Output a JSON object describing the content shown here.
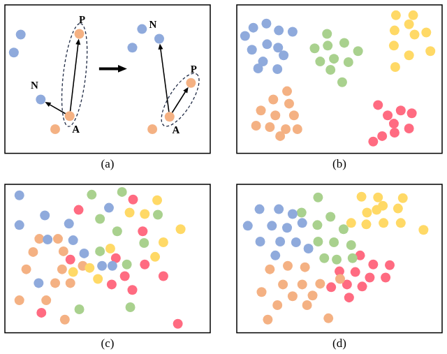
{
  "chart_data": [
    {
      "type": "scatter",
      "title": "(a)",
      "xlim": [
        0,
        298
      ],
      "ylim": [
        0,
        215
      ],
      "tick_labels": false,
      "grid": false,
      "series": [
        {
          "color": "#8faadc",
          "values": [
            [
              23,
              172
            ],
            [
              13,
              146
            ],
            [
              52,
              78
            ],
            [
              224,
              166
            ],
            [
              199,
              180
            ],
            [
              185,
              153
            ]
          ]
        },
        {
          "color": "#f4b183",
          "values": [
            [
              108,
              173
            ],
            [
              94,
              54
            ],
            [
              73,
              35
            ],
            [
              270,
              102
            ],
            [
              239,
              53
            ],
            [
              214,
              35
            ]
          ]
        }
      ],
      "triplets": [
        {
          "anchor": {
            "text": "A",
            "x": 94,
            "y": 54
          },
          "positive": {
            "text": "P",
            "x": 108,
            "y": 173
          },
          "negative": {
            "text": "N",
            "x": 52,
            "y": 78
          }
        },
        {
          "anchor": {
            "text": "A",
            "x": 239,
            "y": 53
          },
          "positive": {
            "text": "P",
            "x": 270,
            "y": 102
          },
          "negative": {
            "text": "N",
            "x": 224,
            "y": 166
          }
        }
      ]
    },
    {
      "type": "scatter",
      "title": "(b)",
      "xlim": [
        0,
        298
      ],
      "ylim": [
        0,
        215
      ],
      "tick_labels": false,
      "grid": false,
      "series": [
        {
          "color": "#8faadc",
          "values": [
            [
              12,
              170
            ],
            [
              24,
              182
            ],
            [
              43,
              188
            ],
            [
              61,
              178
            ],
            [
              81,
              176
            ],
            [
              22,
              150
            ],
            [
              44,
              158
            ],
            [
              60,
              153
            ],
            [
              38,
              133
            ],
            [
              68,
              142
            ],
            [
              31,
              123
            ],
            [
              59,
              122
            ]
          ]
        },
        {
          "color": "#a9d18e",
          "values": [
            [
              131,
              173
            ],
            [
              113,
              152
            ],
            [
              132,
              156
            ],
            [
              156,
              160
            ],
            [
              176,
              148
            ],
            [
              121,
              133
            ],
            [
              141,
              137
            ],
            [
              162,
              132
            ],
            [
              136,
              121
            ],
            [
              153,
              103
            ]
          ]
        },
        {
          "color": "#ffd966",
          "values": [
            [
              231,
              200
            ],
            [
              256,
              200
            ],
            [
              250,
              187
            ],
            [
              229,
              178
            ],
            [
              258,
              172
            ],
            [
              275,
              175
            ],
            [
              228,
              156
            ],
            [
              250,
              142
            ],
            [
              281,
              148
            ],
            [
              230,
              125
            ]
          ]
        },
        {
          "color": "#f4b183",
          "values": [
            [
              73,
              90
            ],
            [
              53,
              78
            ],
            [
              76,
              72
            ],
            [
              35,
              62
            ],
            [
              56,
              55
            ],
            [
              83,
              55
            ],
            [
              28,
              40
            ],
            [
              48,
              38
            ],
            [
              71,
              35
            ],
            [
              88,
              35
            ],
            [
              63,
              25
            ]
          ]
        },
        {
          "color": "#ff6b81",
          "values": [
            [
              205,
              70
            ],
            [
              219,
              55
            ],
            [
              238,
              62
            ],
            [
              254,
              58
            ],
            [
              228,
              43
            ],
            [
              250,
              36
            ],
            [
              211,
              25
            ],
            [
              229,
              30
            ],
            [
              198,
              17
            ]
          ]
        }
      ]
    },
    {
      "type": "scatter",
      "title": "(c)",
      "xlim": [
        0,
        298
      ],
      "ylim": [
        0,
        215
      ],
      "tick_labels": false,
      "grid": false,
      "series": [
        {
          "color": "#8faadc",
          "values": [
            [
              21,
              199
            ],
            [
              58,
              170
            ],
            [
              21,
              156
            ],
            [
              151,
              181
            ],
            [
              93,
              158
            ],
            [
              62,
              135
            ],
            [
              99,
              134
            ],
            [
              115,
              115
            ],
            [
              141,
              97
            ],
            [
              49,
              72
            ],
            [
              156,
              97
            ]
          ]
        },
        {
          "color": "#a9d18e",
          "values": [
            [
              126,
              200
            ],
            [
              170,
              204
            ],
            [
              138,
              165
            ],
            [
              222,
              171
            ],
            [
              163,
              147
            ],
            [
              202,
              130
            ],
            [
              138,
              118
            ],
            [
              177,
              99
            ],
            [
              182,
              37
            ],
            [
              108,
              34
            ]
          ]
        },
        {
          "color": "#ffd966",
          "values": [
            [
              221,
              192
            ],
            [
              181,
              174
            ],
            [
              203,
              172
            ],
            [
              255,
              150
            ],
            [
              153,
              122
            ],
            [
              230,
              131
            ],
            [
              123,
              94
            ],
            [
              99,
              88
            ],
            [
              218,
              110
            ],
            [
              135,
              78
            ]
          ]
        },
        {
          "color": "#f4b183",
          "values": [
            [
              50,
              136
            ],
            [
              77,
              136
            ],
            [
              85,
              118
            ],
            [
              41,
              117
            ],
            [
              31,
              92
            ],
            [
              83,
              92
            ],
            [
              113,
              97
            ],
            [
              73,
              72
            ],
            [
              95,
              72
            ],
            [
              21,
              47
            ],
            [
              60,
              47
            ],
            [
              87,
              19
            ]
          ]
        },
        {
          "color": "#ff6b81",
          "values": [
            [
              107,
              178
            ],
            [
              186,
              193
            ],
            [
              200,
              147
            ],
            [
              161,
              108
            ],
            [
              203,
              99
            ],
            [
              174,
              82
            ],
            [
              155,
              70
            ],
            [
              185,
              62
            ],
            [
              230,
              82
            ],
            [
              53,
              29
            ],
            [
              251,
              13
            ],
            [
              95,
              106
            ]
          ]
        }
      ]
    },
    {
      "type": "scatter",
      "title": "(d)",
      "xlim": [
        0,
        298
      ],
      "ylim": [
        0,
        215
      ],
      "tick_labels": false,
      "grid": false,
      "series": [
        {
          "color": "#8faadc",
          "values": [
            [
              33,
              179
            ],
            [
              61,
              179
            ],
            [
              81,
              172
            ],
            [
              16,
              155
            ],
            [
              51,
              155
            ],
            [
              73,
              152
            ],
            [
              95,
              159
            ],
            [
              34,
              132
            ],
            [
              63,
              132
            ],
            [
              86,
              131
            ],
            [
              56,
              112
            ],
            [
              104,
              122
            ]
          ]
        },
        {
          "color": "#a9d18e",
          "values": [
            [
              118,
              196
            ],
            [
              94,
              174
            ],
            [
              117,
              156
            ],
            [
              136,
              168
            ],
            [
              155,
              150
            ],
            [
              118,
              132
            ],
            [
              141,
              131
            ],
            [
              166,
              127
            ],
            [
              127,
              108
            ],
            [
              145,
              106
            ],
            [
              168,
              108
            ]
          ]
        },
        {
          "color": "#ffd966",
          "values": [
            [
              181,
              197
            ],
            [
              205,
              196
            ],
            [
              241,
              195
            ],
            [
              189,
              174
            ],
            [
              212,
              184
            ],
            [
              234,
              180
            ],
            [
              166,
              159
            ],
            [
              188,
              157
            ],
            [
              213,
              159
            ],
            [
              238,
              159
            ],
            [
              271,
              149
            ],
            [
              203,
              178
            ]
          ]
        },
        {
          "color": "#f4b183",
          "values": [
            [
              74,
              97
            ],
            [
              48,
              92
            ],
            [
              99,
              95
            ],
            [
              36,
              59
            ],
            [
              67,
              70
            ],
            [
              95,
              70
            ],
            [
              121,
              71
            ],
            [
              81,
              53
            ],
            [
              110,
              54
            ],
            [
              59,
              40
            ],
            [
              102,
              40
            ],
            [
              45,
              19
            ],
            [
              133,
              21
            ],
            [
              150,
              78
            ]
          ]
        },
        {
          "color": "#ff6b81",
          "values": [
            [
              179,
              112
            ],
            [
              198,
              99
            ],
            [
              222,
              98
            ],
            [
              149,
              89
            ],
            [
              172,
              88
            ],
            [
              193,
              80
            ],
            [
              216,
              80
            ],
            [
              160,
              70
            ],
            [
              182,
              67
            ],
            [
              163,
              51
            ],
            [
              137,
              66
            ]
          ]
        }
      ]
    }
  ]
}
